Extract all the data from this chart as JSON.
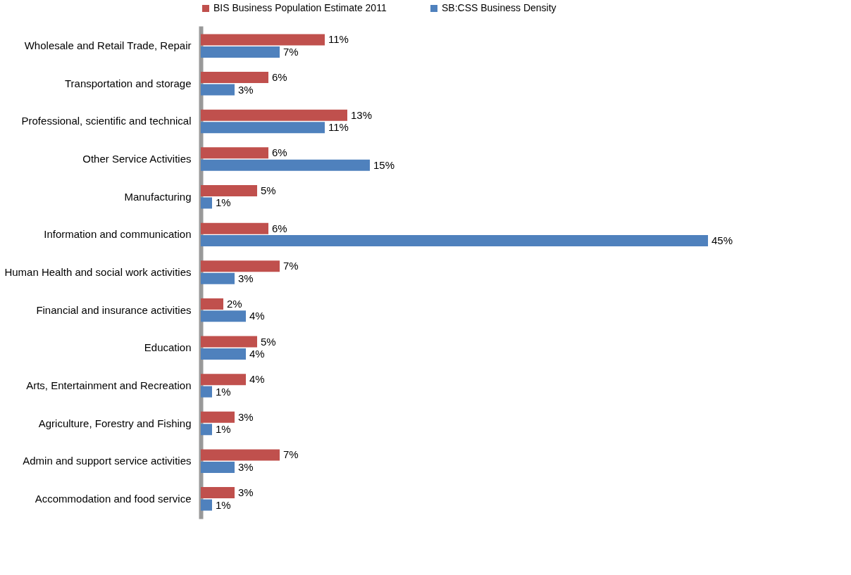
{
  "chart_data": {
    "type": "bar",
    "orientation": "horizontal",
    "legend": "top",
    "categories": [
      "Wholesale and Retail Trade, Repair",
      "Transportation and storage",
      "Professional, scientific and technical",
      "Other Service Activities",
      "Manufacturing",
      "Information and communication",
      "Human Health and social work activities",
      "Financial and insurance activities",
      "Education",
      "Arts, Entertainment and Recreation",
      "Agriculture, Forestry and Fishing",
      "Admin and support service activities",
      "Accommodation and food service"
    ],
    "series": [
      {
        "name": "BIS Business Population Estimate 2011",
        "color": "#c0504d",
        "values": [
          11,
          6,
          13,
          6,
          5,
          6,
          7,
          2,
          5,
          4,
          3,
          7,
          3
        ],
        "value_labels": [
          "11%",
          "6%",
          "13%",
          "6%",
          "5%",
          "6%",
          "7%",
          "2%",
          "5%",
          "4%",
          "3%",
          "7%",
          "3%"
        ]
      },
      {
        "name": "SB:CSS Business Density",
        "color": "#4f81bd",
        "values": [
          7,
          3,
          11,
          15,
          1,
          45,
          3,
          4,
          4,
          1,
          1,
          3,
          1
        ],
        "value_labels": [
          "7%",
          "3%",
          "11%",
          "15%",
          "1%",
          "45%",
          "3%",
          "4%",
          "4%",
          "1%",
          "1%",
          "3%",
          "1%"
        ]
      }
    ]
  }
}
